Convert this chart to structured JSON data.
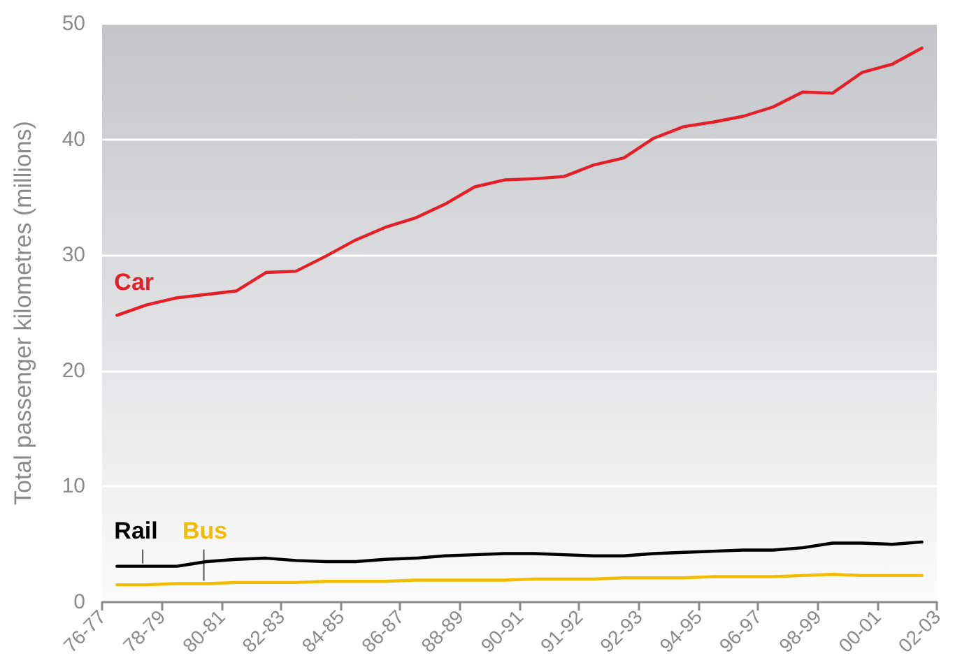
{
  "chart_data": {
    "type": "line",
    "ylabel": "Total passenger kilometres (millions)",
    "categories": [
      "76-77",
      null,
      null,
      null,
      "78-79",
      null,
      null,
      null,
      "80-81",
      null,
      null,
      null,
      "82-83",
      null,
      null,
      null,
      "84-85",
      null,
      null,
      null,
      "86-87",
      null,
      null,
      null,
      "88-89",
      null,
      null,
      null,
      "90-91",
      null,
      null,
      null,
      "91-92",
      null,
      null,
      null,
      "92-93",
      null,
      null,
      null,
      "94-95",
      null,
      null,
      null,
      "96-97",
      null,
      null,
      null,
      "98-99",
      null,
      null,
      null,
      "00-01",
      null,
      null,
      null,
      "02-03"
    ],
    "series": [
      {
        "name": "Car",
        "color": "#e3202a",
        "values": [
          null,
          24.8,
          null,
          25.7,
          null,
          26.3,
          null,
          26.6,
          null,
          26.9,
          null,
          28.5,
          null,
          28.6,
          null,
          29.9,
          null,
          31.3,
          null,
          32.4,
          null,
          33.2,
          null,
          34.4,
          null,
          35.9,
          null,
          36.5,
          null,
          36.6,
          null,
          36.8,
          null,
          37.8,
          null,
          38.4,
          null,
          40.1,
          null,
          41.1,
          null,
          41.5,
          null,
          42.0,
          null,
          42.8,
          null,
          44.1,
          null,
          44.0,
          null,
          45.8,
          null,
          46.5,
          null,
          47.9,
          null
        ]
      },
      {
        "name": "Rail",
        "color": "#000000",
        "values": [
          null,
          3.1,
          null,
          3.1,
          null,
          3.1,
          null,
          3.5,
          null,
          3.7,
          null,
          3.8,
          null,
          3.6,
          null,
          3.5,
          null,
          3.5,
          null,
          3.7,
          null,
          3.8,
          null,
          4.0,
          null,
          4.1,
          null,
          4.2,
          null,
          4.2,
          null,
          4.1,
          null,
          4.0,
          null,
          4.0,
          null,
          4.2,
          null,
          4.3,
          null,
          4.4,
          null,
          4.5,
          null,
          4.5,
          null,
          4.7,
          null,
          5.1,
          null,
          5.1,
          null,
          5.0,
          null,
          5.2,
          null
        ]
      },
      {
        "name": "Bus",
        "color": "#f2bd00",
        "values": [
          null,
          1.5,
          null,
          1.5,
          null,
          1.6,
          null,
          1.6,
          null,
          1.7,
          null,
          1.7,
          null,
          1.7,
          null,
          1.8,
          null,
          1.8,
          null,
          1.8,
          null,
          1.9,
          null,
          1.9,
          null,
          1.9,
          null,
          1.9,
          null,
          2.0,
          null,
          2.0,
          null,
          2.0,
          null,
          2.1,
          null,
          2.1,
          null,
          2.1,
          null,
          2.2,
          null,
          2.2,
          null,
          2.2,
          null,
          2.3,
          null,
          2.4,
          null,
          2.3,
          null,
          2.3,
          null,
          2.3,
          null
        ]
      }
    ],
    "ylim": [
      0,
      50
    ],
    "yticks": [
      0,
      10,
      20,
      30,
      40,
      50
    ],
    "grid": "y",
    "legend": false,
    "marker": "none",
    "line_style": "solid"
  }
}
